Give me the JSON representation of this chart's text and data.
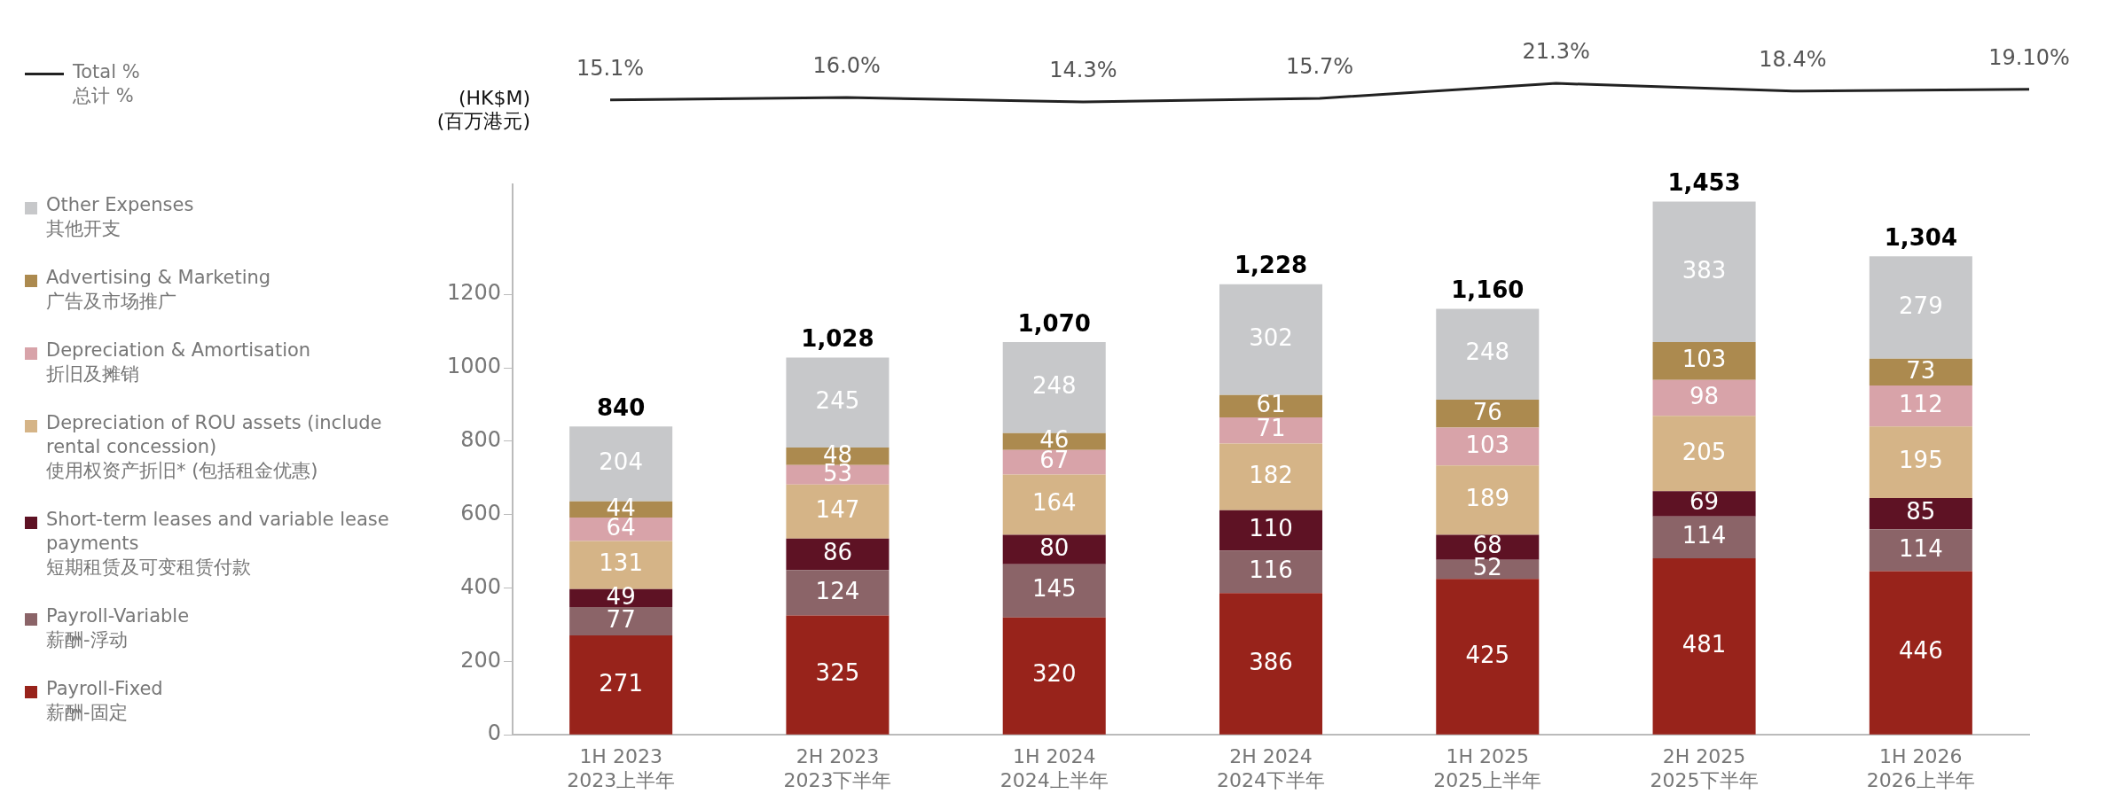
{
  "chart_data": [
    {
      "type": "line",
      "categories": [
        null,
        null,
        null,
        null,
        null,
        null,
        null
      ],
      "series": [
        {
          "name": "Total %\n总计 %",
          "color": "#222222",
          "values": [
            15.1,
            16.0,
            14.3,
            15.7,
            21.3,
            18.4,
            19.1
          ],
          "value_labels": [
            "15.1%",
            "16.0%",
            "14.3%",
            "15.7%",
            "21.3%",
            "18.4%",
            "19.10%"
          ]
        }
      ],
      "legend": "left",
      "marker": "none",
      "grid": false
    },
    {
      "type": "bar",
      "stacked": true,
      "ylabel": "(HK$M)\n(百万港元)",
      "categories": [
        "1H 2023\n2023上半年",
        "2H 2023\n2023下半年",
        "1H 2024\n2024上半年",
        "2H 2024\n2024下半年",
        "1H 2025\n2025上半年",
        "2H 2025\n2025下半年",
        "1H 2026\n2026上半年"
      ],
      "series": [
        {
          "name": "Payroll-Fixed\n薪酬-固定",
          "color": "#98231b",
          "values": [
            271,
            325,
            320,
            386,
            425,
            481,
            446
          ]
        },
        {
          "name": "Payroll-Variable\n薪酬-浮动",
          "color": "#8b6468",
          "values": [
            77,
            124,
            145,
            116,
            52,
            114,
            114
          ]
        },
        {
          "name": "Short-term leases and variable lease payments\n短期租赁及可变租赁付款",
          "color": "#5e1224",
          "values": [
            49,
            86,
            80,
            110,
            68,
            69,
            85
          ]
        },
        {
          "name": "Depreciation of ROU assets (include rental concession)\n使用权资产折旧* (包括租金优惠)",
          "color": "#d5b487",
          "values": [
            131,
            147,
            164,
            182,
            189,
            205,
            195
          ]
        },
        {
          "name": "Depreciation & Amortisation\n折旧及摊销",
          "color": "#d8a3a9",
          "values": [
            64,
            53,
            67,
            71,
            103,
            98,
            112
          ]
        },
        {
          "name": "Advertising & Marketing\n广告及市场推广",
          "color": "#ac8a4f",
          "values": [
            44,
            48,
            46,
            61,
            76,
            103,
            73
          ]
        },
        {
          "name": "Other Expenses\n其他开支",
          "color": "#c7c8ca",
          "values": [
            204,
            245,
            248,
            302,
            248,
            383,
            279
          ]
        }
      ],
      "totals": [
        "840",
        "1,028",
        "1,070",
        "1,228",
        "1,160",
        "1,453",
        "1,304"
      ],
      "data_labels": true,
      "ylim": [
        0,
        1500
      ],
      "yticks": [
        0,
        200,
        400,
        600,
        800,
        1000,
        1200
      ],
      "grid": false,
      "legend": "left"
    }
  ]
}
